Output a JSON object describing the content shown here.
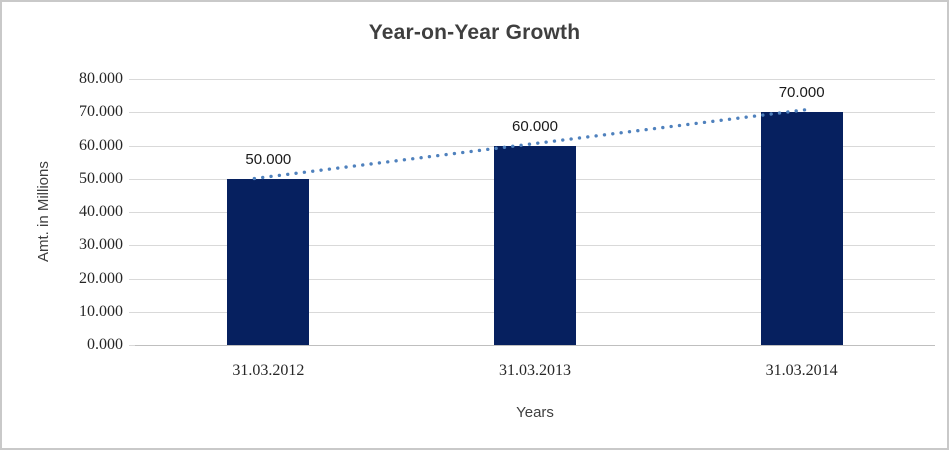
{
  "chart_data": {
    "type": "bar",
    "title": "Year-on-Year Growth",
    "xlabel": "Years",
    "ylabel": "Amt. in Millions",
    "categories": [
      "31.03.2012",
      "31.03.2013",
      "31.03.2014"
    ],
    "values": [
      50,
      60,
      70
    ],
    "value_labels": [
      "50.000",
      "60.000",
      "70.000"
    ],
    "ylim": [
      0,
      80
    ],
    "ytick_step": 10,
    "ytick_labels": [
      "0.000",
      "10.000",
      "20.000",
      "30.000",
      "40.000",
      "50.000",
      "60.000",
      "70.000",
      "80.000"
    ],
    "grid": true,
    "legend": "none",
    "trendline": {
      "type": "linear",
      "style": "dotted"
    },
    "colors": {
      "bar": "#06205f",
      "trendline": "#4f81bd",
      "gridline": "#d9d9d9",
      "axis_line": "#bfbfbf",
      "title_text": "#3f3f3f",
      "tick_text": "#262626",
      "label_text": "#1a1a1a",
      "border": "#c9c9c9",
      "background": "#ffffff"
    }
  }
}
